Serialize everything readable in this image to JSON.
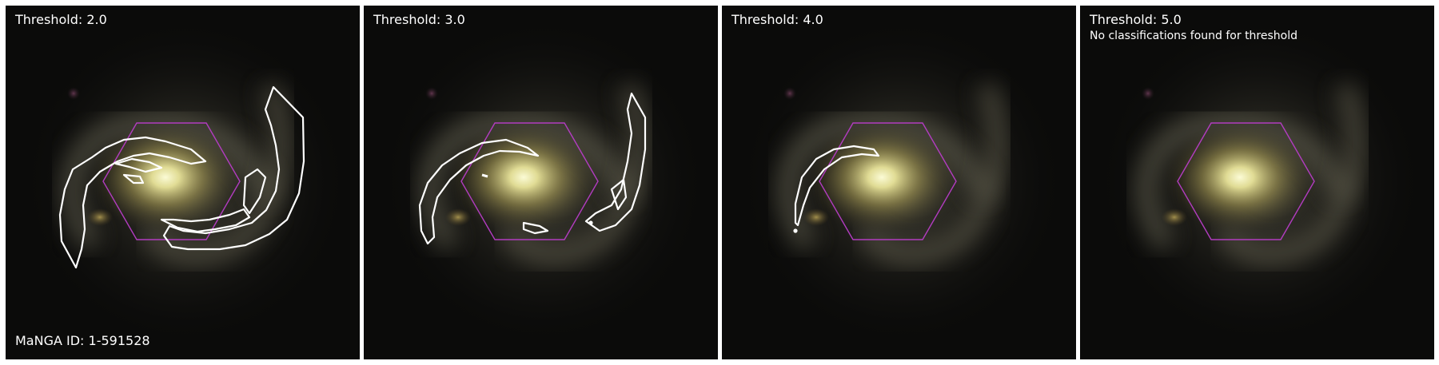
{
  "panels": [
    {
      "threshold_label": "Threshold: 2.0",
      "message": ""
    },
    {
      "threshold_label": "Threshold: 3.0",
      "message": ""
    },
    {
      "threshold_label": "Threshold: 4.0",
      "message": ""
    },
    {
      "threshold_label": "Threshold: 5.0",
      "message": "No classifications found for threshold"
    }
  ],
  "manga_id_label": "MaNGA ID: 1-591528",
  "colors": {
    "hexagon": "#b23cc0",
    "contour": "#ffffff",
    "background": "#0b0b0a"
  }
}
